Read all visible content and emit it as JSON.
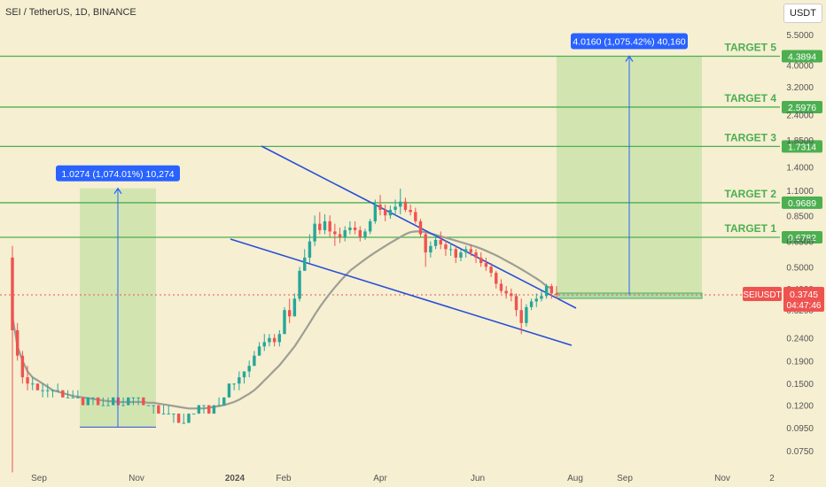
{
  "header": {
    "symbol_title": "SEI / TetherUS, 1D, BINANCE",
    "unit_button": "USDT"
  },
  "colors": {
    "background": "#f6efd2",
    "candle_up": "#26a69a",
    "candle_down": "#ef5350",
    "target_line": "#4caf50",
    "target_label": "#4caf50",
    "trendline": "#2950d6",
    "moving_average": "#9e9e94",
    "measure_box": "#c5e1a5",
    "measure_label": "#2962ff",
    "price_line": "#ef5350"
  },
  "chart_data": {
    "type": "candlestick",
    "price_scale": "log",
    "ylim": [
      0.0704,
      5.8
    ],
    "x_ticks": [
      "Sep",
      "Nov",
      "2024",
      "Feb",
      "Apr",
      "Jun",
      "Aug",
      "Sep",
      "Nov",
      "2"
    ],
    "y_ticks": [
      "5.5000",
      "4.0000",
      "3.2000",
      "2.4000",
      "1.8500",
      "1.4000",
      "1.1000",
      "0.8500",
      "0.6500",
      "0.5000",
      "0.4000",
      "0.3200",
      "0.2400",
      "0.1900",
      "0.1500",
      "0.1200",
      "0.0950",
      "0.0750"
    ],
    "current_price": {
      "symbol": "SEIUSDT",
      "value": "0.3745",
      "countdown": "04:47:46"
    },
    "targets": [
      {
        "name": "TARGET 1",
        "value": 0.6782,
        "label": "0.6782"
      },
      {
        "name": "TARGET 2",
        "value": 0.9689,
        "label": "0.9689"
      },
      {
        "name": "TARGET 3",
        "value": 1.7314,
        "label": "1.7314"
      },
      {
        "name": "TARGET 4",
        "value": 2.5976,
        "label": "2.5976"
      },
      {
        "name": "TARGET 5",
        "value": 4.3894,
        "label": "4.3894"
      }
    ],
    "measurements": [
      {
        "label": "1.0274 (1,074.01%) 10,274",
        "from": 0.0957,
        "to": 1.1231
      },
      {
        "label": "4.0160 (1,075.42%) 40,160",
        "from": 0.3734,
        "to": 4.3894
      }
    ],
    "ohlc": [
      [
        0.55,
        0.62,
        0.06,
        0.26
      ],
      [
        0.26,
        0.28,
        0.19,
        0.2
      ],
      [
        0.2,
        0.21,
        0.15,
        0.16
      ],
      [
        0.16,
        0.18,
        0.14,
        0.15
      ],
      [
        0.15,
        0.16,
        0.14,
        0.15
      ],
      [
        0.15,
        0.15,
        0.14,
        0.14
      ],
      [
        0.14,
        0.15,
        0.13,
        0.14
      ],
      [
        0.14,
        0.15,
        0.13,
        0.14
      ],
      [
        0.14,
        0.14,
        0.13,
        0.14
      ],
      [
        0.14,
        0.15,
        0.14,
        0.14
      ],
      [
        0.14,
        0.14,
        0.13,
        0.13
      ],
      [
        0.13,
        0.14,
        0.13,
        0.13
      ],
      [
        0.13,
        0.14,
        0.13,
        0.13
      ],
      [
        0.13,
        0.14,
        0.13,
        0.13
      ],
      [
        0.13,
        0.13,
        0.12,
        0.12
      ],
      [
        0.12,
        0.13,
        0.12,
        0.13
      ],
      [
        0.13,
        0.13,
        0.12,
        0.13
      ],
      [
        0.13,
        0.13,
        0.12,
        0.12
      ],
      [
        0.12,
        0.13,
        0.12,
        0.12
      ],
      [
        0.12,
        0.13,
        0.12,
        0.12
      ],
      [
        0.12,
        0.13,
        0.12,
        0.13
      ],
      [
        0.13,
        0.13,
        0.12,
        0.12
      ],
      [
        0.12,
        0.13,
        0.12,
        0.12
      ],
      [
        0.12,
        0.13,
        0.12,
        0.13
      ],
      [
        0.13,
        0.13,
        0.12,
        0.13
      ],
      [
        0.13,
        0.13,
        0.12,
        0.13
      ],
      [
        0.13,
        0.13,
        0.12,
        0.12
      ],
      [
        0.12,
        0.12,
        0.12,
        0.12
      ],
      [
        0.12,
        0.12,
        0.11,
        0.12
      ],
      [
        0.12,
        0.12,
        0.11,
        0.11
      ],
      [
        0.11,
        0.12,
        0.11,
        0.11
      ],
      [
        0.11,
        0.12,
        0.11,
        0.11
      ],
      [
        0.11,
        0.11,
        0.1,
        0.11
      ],
      [
        0.11,
        0.11,
        0.1,
        0.1
      ],
      [
        0.1,
        0.11,
        0.1,
        0.1
      ],
      [
        0.1,
        0.11,
        0.1,
        0.11
      ],
      [
        0.11,
        0.11,
        0.11,
        0.11
      ],
      [
        0.11,
        0.12,
        0.11,
        0.12
      ],
      [
        0.12,
        0.12,
        0.11,
        0.12
      ],
      [
        0.12,
        0.12,
        0.11,
        0.11
      ],
      [
        0.11,
        0.12,
        0.11,
        0.12
      ],
      [
        0.12,
        0.13,
        0.12,
        0.12
      ],
      [
        0.12,
        0.13,
        0.12,
        0.13
      ],
      [
        0.13,
        0.15,
        0.13,
        0.15
      ],
      [
        0.15,
        0.15,
        0.14,
        0.15
      ],
      [
        0.15,
        0.17,
        0.14,
        0.16
      ],
      [
        0.16,
        0.17,
        0.15,
        0.17
      ],
      [
        0.17,
        0.19,
        0.16,
        0.18
      ],
      [
        0.18,
        0.21,
        0.18,
        0.2
      ],
      [
        0.2,
        0.23,
        0.2,
        0.22
      ],
      [
        0.22,
        0.25,
        0.21,
        0.23
      ],
      [
        0.23,
        0.25,
        0.22,
        0.24
      ],
      [
        0.24,
        0.25,
        0.22,
        0.23
      ],
      [
        0.23,
        0.26,
        0.22,
        0.25
      ],
      [
        0.25,
        0.33,
        0.25,
        0.32
      ],
      [
        0.32,
        0.36,
        0.28,
        0.3
      ],
      [
        0.3,
        0.38,
        0.3,
        0.36
      ],
      [
        0.36,
        0.5,
        0.35,
        0.48
      ],
      [
        0.48,
        0.6,
        0.48,
        0.55
      ],
      [
        0.55,
        0.7,
        0.52,
        0.65
      ],
      [
        0.65,
        0.85,
        0.62,
        0.78
      ],
      [
        0.78,
        0.88,
        0.7,
        0.73
      ],
      [
        0.73,
        0.86,
        0.7,
        0.8
      ],
      [
        0.8,
        0.85,
        0.68,
        0.72
      ],
      [
        0.72,
        0.78,
        0.62,
        0.7
      ],
      [
        0.7,
        0.75,
        0.64,
        0.68
      ],
      [
        0.68,
        0.76,
        0.65,
        0.73
      ],
      [
        0.73,
        0.8,
        0.7,
        0.75
      ],
      [
        0.75,
        0.8,
        0.7,
        0.73
      ],
      [
        0.73,
        0.76,
        0.65,
        0.68
      ],
      [
        0.68,
        0.74,
        0.66,
        0.72
      ],
      [
        0.72,
        0.82,
        0.7,
        0.8
      ],
      [
        0.8,
        1.0,
        0.78,
        0.95
      ],
      [
        0.95,
        1.05,
        0.85,
        0.9
      ],
      [
        0.9,
        0.95,
        0.8,
        0.85
      ],
      [
        0.85,
        0.94,
        0.82,
        0.9
      ],
      [
        0.9,
        1.0,
        0.85,
        0.93
      ],
      [
        0.93,
        1.12,
        0.86,
        0.98
      ],
      [
        0.98,
        1.02,
        0.88,
        0.9
      ],
      [
        0.9,
        0.95,
        0.85,
        0.88
      ],
      [
        0.88,
        0.92,
        0.78,
        0.8
      ],
      [
        0.8,
        0.82,
        0.68,
        0.7
      ],
      [
        0.7,
        0.72,
        0.5,
        0.58
      ],
      [
        0.58,
        0.65,
        0.55,
        0.62
      ],
      [
        0.62,
        0.7,
        0.6,
        0.66
      ],
      [
        0.66,
        0.72,
        0.6,
        0.63
      ],
      [
        0.63,
        0.66,
        0.56,
        0.6
      ],
      [
        0.6,
        0.64,
        0.56,
        0.6
      ],
      [
        0.6,
        0.62,
        0.52,
        0.55
      ],
      [
        0.55,
        0.6,
        0.53,
        0.58
      ],
      [
        0.58,
        0.62,
        0.55,
        0.6
      ],
      [
        0.6,
        0.63,
        0.56,
        0.58
      ],
      [
        0.58,
        0.6,
        0.52,
        0.55
      ],
      [
        0.55,
        0.58,
        0.5,
        0.52
      ],
      [
        0.52,
        0.55,
        0.48,
        0.5
      ],
      [
        0.5,
        0.52,
        0.45,
        0.47
      ],
      [
        0.47,
        0.48,
        0.4,
        0.42
      ],
      [
        0.42,
        0.44,
        0.38,
        0.39
      ],
      [
        0.39,
        0.41,
        0.36,
        0.38
      ],
      [
        0.38,
        0.4,
        0.35,
        0.37
      ],
      [
        0.37,
        0.38,
        0.3,
        0.32
      ],
      [
        0.32,
        0.36,
        0.25,
        0.28
      ],
      [
        0.28,
        0.34,
        0.27,
        0.33
      ],
      [
        0.33,
        0.36,
        0.32,
        0.35
      ],
      [
        0.35,
        0.38,
        0.33,
        0.36
      ],
      [
        0.36,
        0.39,
        0.35,
        0.37
      ],
      [
        0.37,
        0.42,
        0.36,
        0.41
      ],
      [
        0.41,
        0.42,
        0.36,
        0.38
      ],
      [
        0.38,
        0.41,
        0.36,
        0.3745
      ]
    ],
    "ma": [
      0.3,
      0.22,
      0.19,
      0.17,
      0.16,
      0.155,
      0.15,
      0.145,
      0.14,
      0.138,
      0.136,
      0.134,
      0.132,
      0.131,
      0.13,
      0.129,
      0.128,
      0.127,
      0.126,
      0.125,
      0.125,
      0.124,
      0.124,
      0.124,
      0.124,
      0.124,
      0.124,
      0.123,
      0.123,
      0.122,
      0.121,
      0.12,
      0.119,
      0.118,
      0.117,
      0.116,
      0.116,
      0.116,
      0.116,
      0.117,
      0.118,
      0.119,
      0.12,
      0.122,
      0.124,
      0.127,
      0.131,
      0.135,
      0.14,
      0.147,
      0.155,
      0.163,
      0.172,
      0.181,
      0.193,
      0.206,
      0.22,
      0.238,
      0.258,
      0.28,
      0.305,
      0.33,
      0.355,
      0.38,
      0.405,
      0.43,
      0.455,
      0.48,
      0.5,
      0.52,
      0.54,
      0.56,
      0.58,
      0.6,
      0.62,
      0.64,
      0.66,
      0.68,
      0.7,
      0.715,
      0.72,
      0.72,
      0.715,
      0.705,
      0.695,
      0.685,
      0.675,
      0.665,
      0.655,
      0.645,
      0.635,
      0.625,
      0.615,
      0.603,
      0.59,
      0.577,
      0.563,
      0.548,
      0.533,
      0.518,
      0.503,
      0.488,
      0.473,
      0.458,
      0.443,
      0.428,
      0.41,
      0.4
    ]
  }
}
